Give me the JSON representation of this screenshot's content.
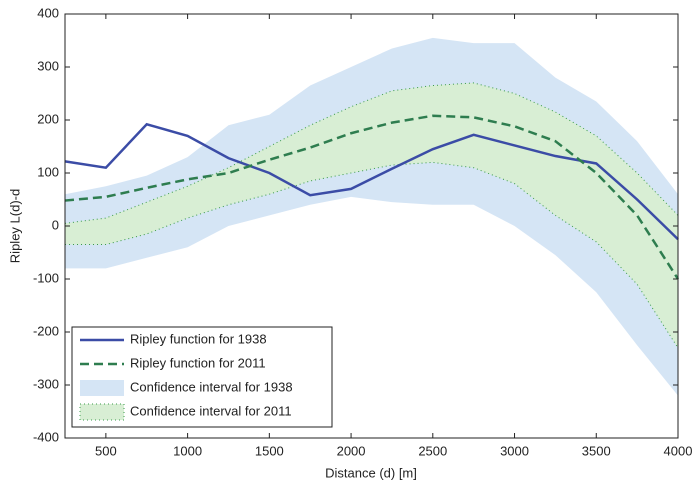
{
  "chart_data": {
    "type": "line",
    "x_label": "Distance (d) [m]",
    "y_label": "Ripley L(d)-d",
    "x": [
      250,
      500,
      750,
      1000,
      1250,
      1500,
      1750,
      2000,
      2250,
      2500,
      2750,
      3000,
      3250,
      3500,
      3750,
      4000
    ],
    "xlim": [
      250,
      4000
    ],
    "xticks": [
      500,
      1000,
      1500,
      2000,
      2500,
      3000,
      3500,
      4000
    ],
    "ylim": [
      -400,
      400
    ],
    "yticks": [
      -400,
      -300,
      -200,
      -100,
      0,
      100,
      200,
      300,
      400
    ],
    "bands": [
      {
        "name": "Confidence interval for 1938",
        "color": "#d5e5f5",
        "upper": [
          60,
          75,
          95,
          130,
          190,
          210,
          265,
          300,
          335,
          355,
          345,
          345,
          280,
          235,
          160,
          60
        ],
        "lower": [
          -80,
          -80,
          -60,
          -40,
          0,
          20,
          40,
          55,
          45,
          40,
          40,
          0,
          -55,
          -125,
          -225,
          -320
        ]
      },
      {
        "name": "Confidence interval for 2011",
        "color": "#d8eed4",
        "edge": "#3a9a4a",
        "upper": [
          5,
          15,
          45,
          75,
          110,
          150,
          190,
          225,
          255,
          265,
          270,
          250,
          215,
          170,
          100,
          20
        ],
        "lower": [
          -35,
          -35,
          -15,
          15,
          40,
          60,
          85,
          100,
          115,
          120,
          110,
          80,
          20,
          -30,
          -110,
          -230
        ]
      }
    ],
    "series": [
      {
        "name": "Ripley function for 1938",
        "color": "#3b4ca6",
        "dash": false,
        "values": [
          122,
          110,
          192,
          170,
          128,
          100,
          58,
          70,
          108,
          145,
          172,
          152,
          132,
          118,
          50,
          -25
        ]
      },
      {
        "name": "Ripley function for 2011",
        "color": "#2e7d4f",
        "dash": true,
        "values": [
          48,
          55,
          72,
          88,
          100,
          125,
          148,
          175,
          195,
          208,
          205,
          188,
          160,
          100,
          20,
          -100
        ]
      }
    ],
    "legend": "lower left"
  }
}
